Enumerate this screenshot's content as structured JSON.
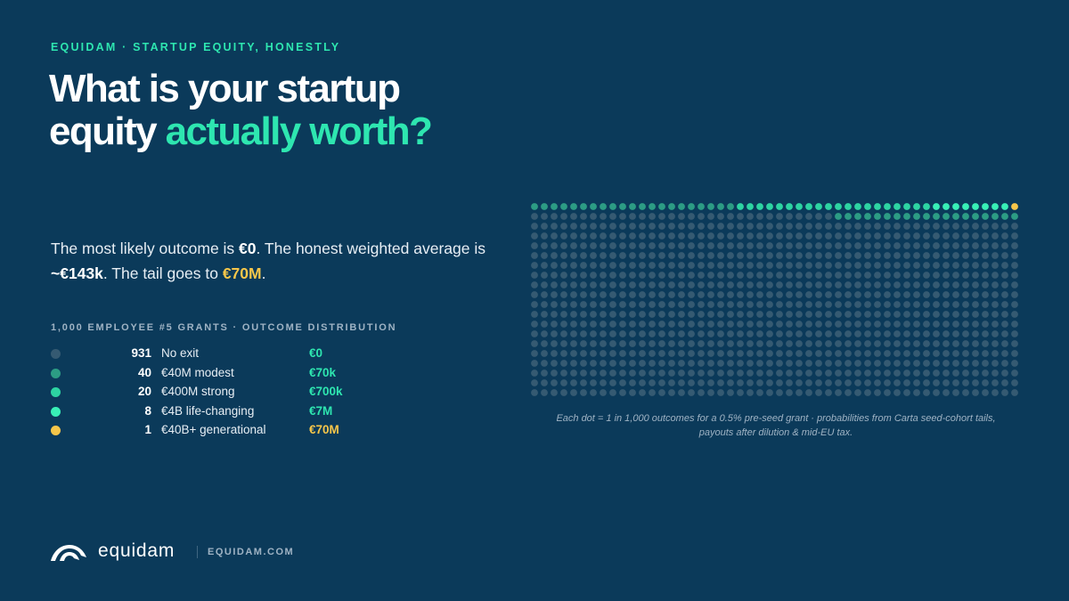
{
  "eyebrow": "EQUIDAM · STARTUP EQUITY, HONESTLY",
  "headline": {
    "line1": "What is your startup",
    "line2_lead": "equity ",
    "line2_accent": "actually worth?"
  },
  "lede": {
    "t1": "The most likely outcome is ",
    "b1": "€0",
    "t2": ". The honest weighted average is ",
    "b2": "~€143k",
    "t3": ". The tail goes to ",
    "b3": "€70M",
    "t4": "."
  },
  "distribution_label": "1,000 EMPLOYEE #5 GRANTS · OUTCOME DISTRIBUTION",
  "legend": [
    {
      "count": "931",
      "name": "No exit",
      "value": "€0",
      "color": "#355a72"
    },
    {
      "count": "40",
      "name": "€40M modest",
      "value": "€70k",
      "color": "#2c9c84"
    },
    {
      "count": "20",
      "name": "€400M strong",
      "value": "€700k",
      "color": "#2dd4a2"
    },
    {
      "count": "8",
      "name": "€4B life-changing",
      "value": "€7M",
      "color": "#38efb6"
    },
    {
      "count": "1",
      "name": "€40B+ generational",
      "value": "€70M",
      "color": "#f6c64a"
    }
  ],
  "colors": {
    "background": "#0b3a5a",
    "accent": "#2ee6b0",
    "gold": "#f6c64a",
    "muted": "#9fb3c4"
  },
  "chart_data": {
    "type": "waffle",
    "title": "1,000 EMPLOYEE #5 GRANTS · OUTCOME DISTRIBUTION",
    "total": 1000,
    "rows": 20,
    "columns": 50,
    "fill_order": "from the top-right corner, right to left along each row",
    "categories": [
      "No exit",
      "€40M modest",
      "€400M strong",
      "€4B life-changing",
      "€40B+ generational"
    ],
    "values": [
      931,
      40,
      20,
      8,
      1
    ],
    "payouts": [
      "€0",
      "€70k",
      "€700k",
      "€7M",
      "€70M"
    ],
    "colors": [
      "#355a72",
      "#2c9c84",
      "#2dd4a2",
      "#38efb6",
      "#f6c64a"
    ]
  },
  "caption": {
    "line1": "Each dot = 1 in 1,000 outcomes for a 0.5% pre-seed grant · probabilities from Carta seed-cohort tails,",
    "line2": "payouts after dilution & mid-EU tax."
  },
  "footer": {
    "brand": "equidam",
    "domain": "EQUIDAM.COM",
    "logo_icon": "equidam-logo-icon"
  }
}
